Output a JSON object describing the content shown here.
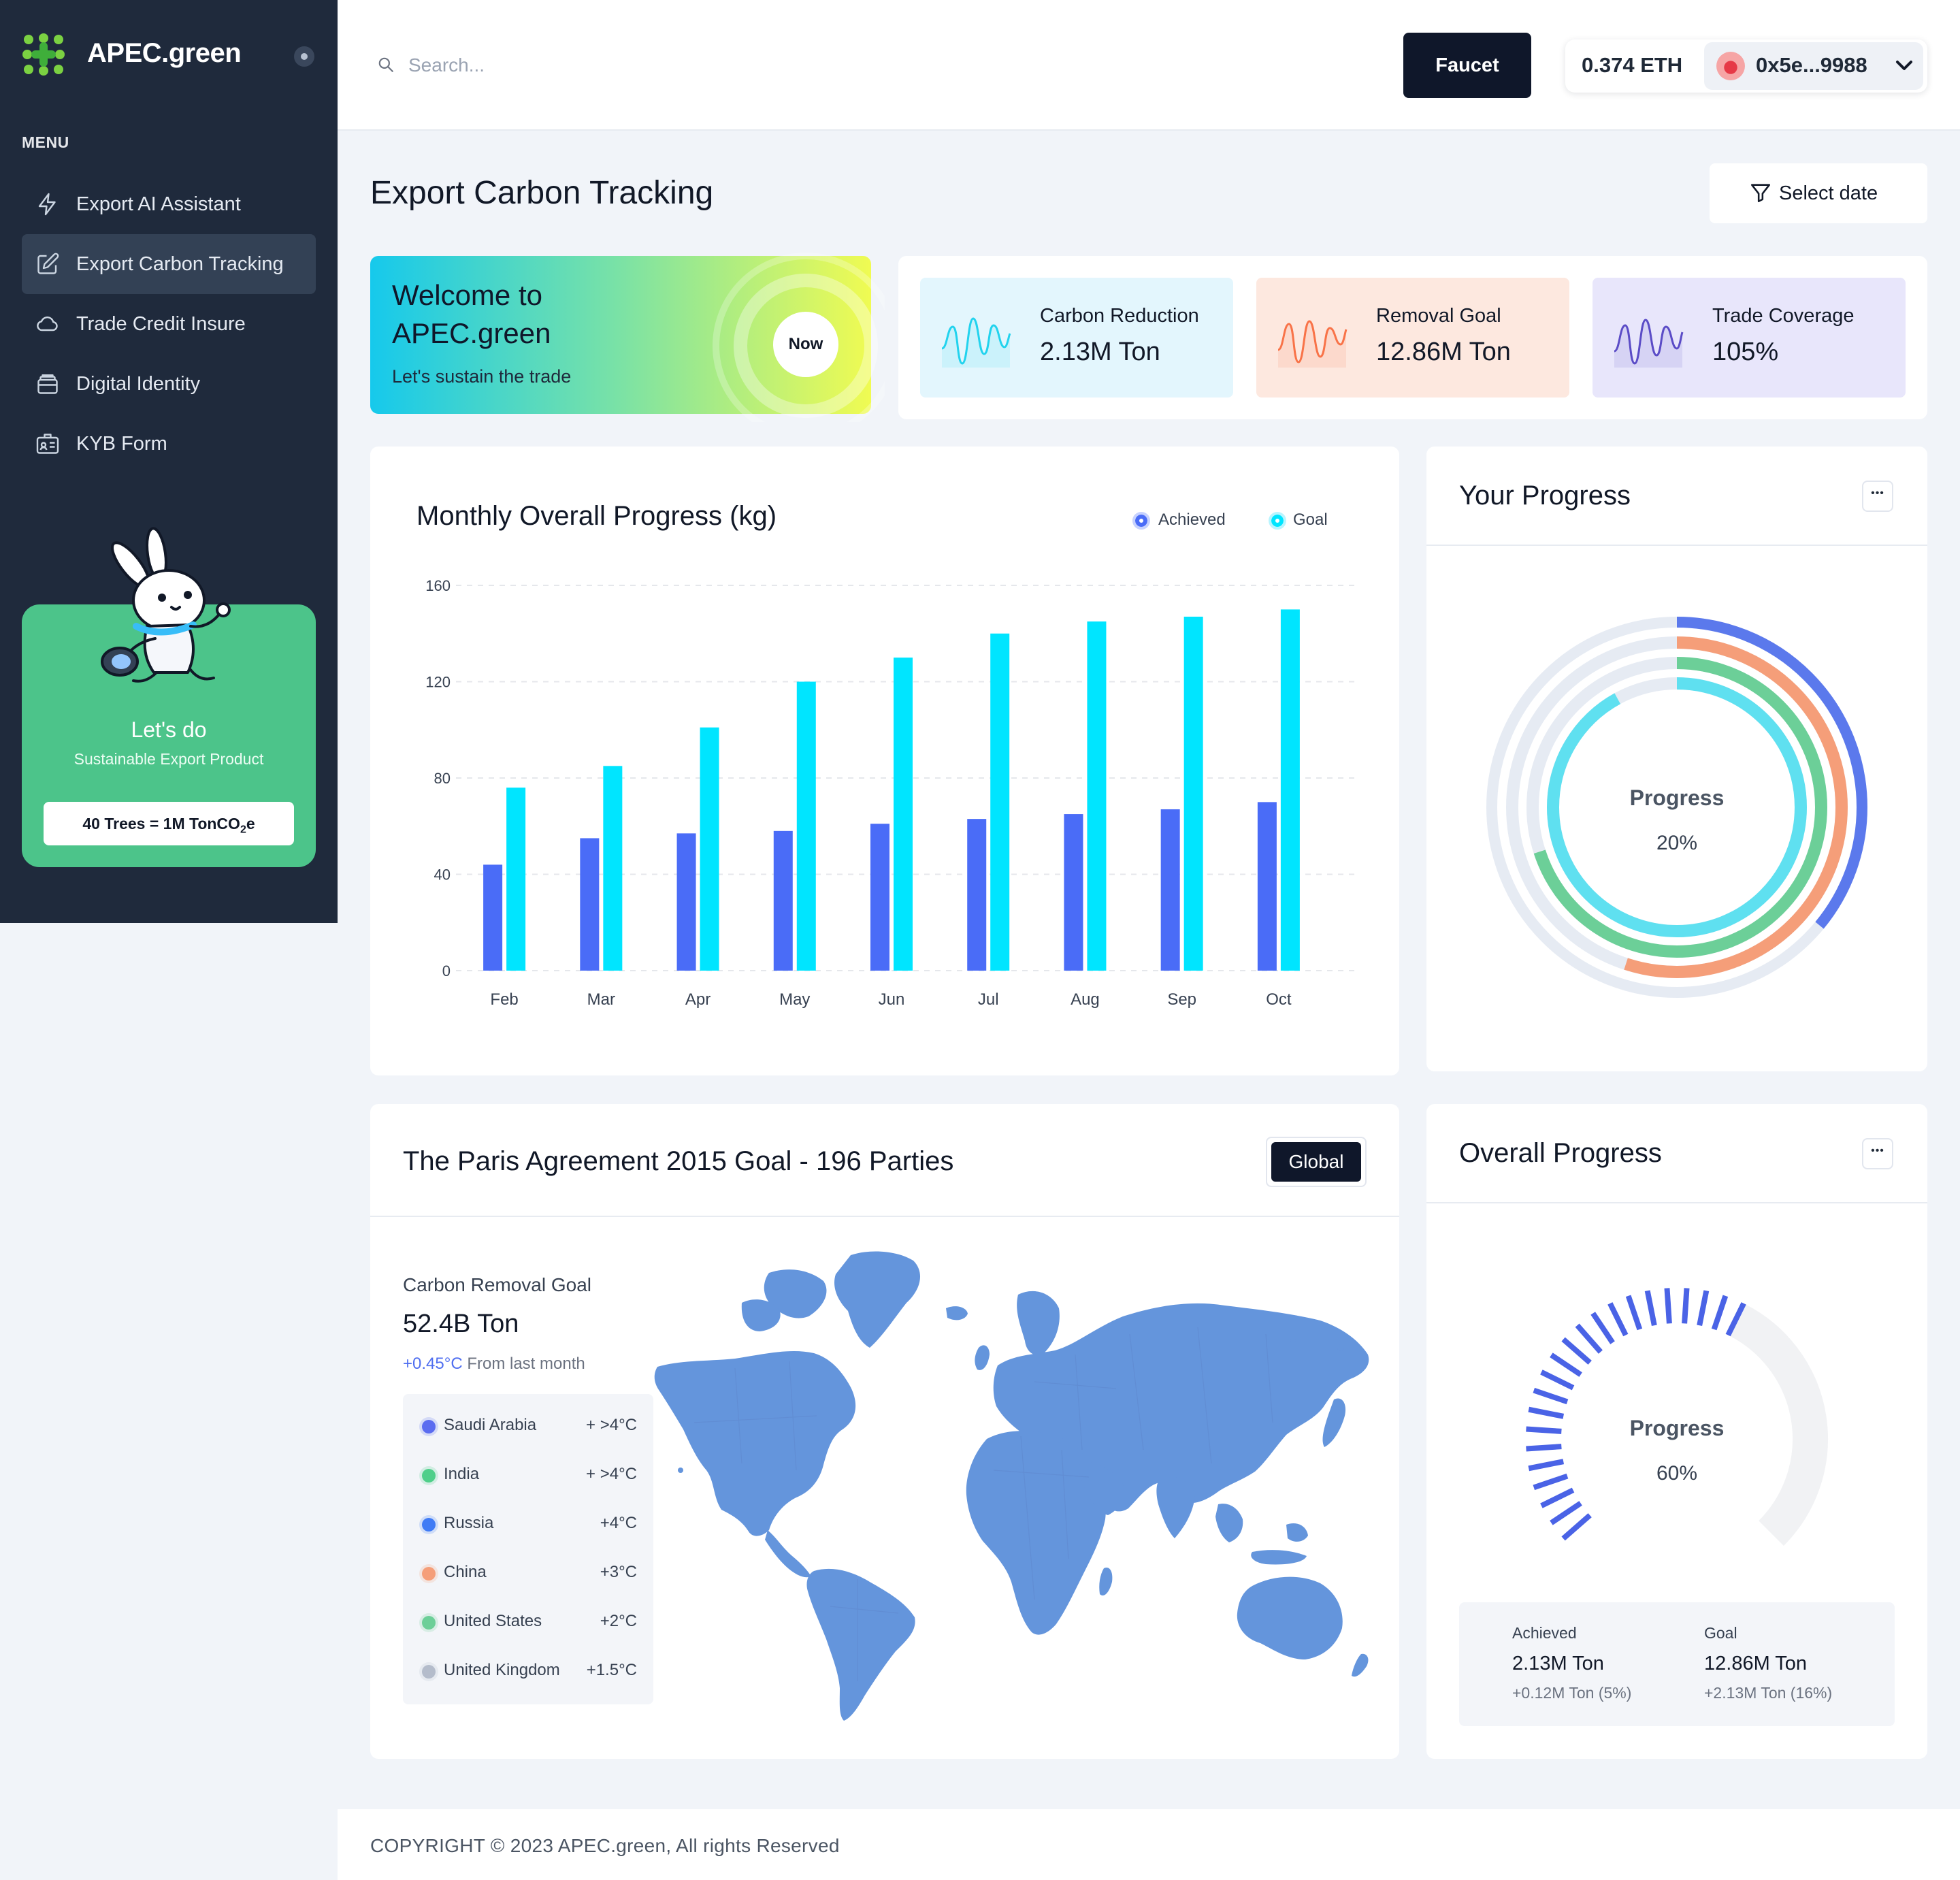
{
  "app": {
    "brand": "APEC.green"
  },
  "sidebar": {
    "menu_label": "MENU",
    "items": [
      {
        "label": "Export AI Assistant",
        "icon": "lightning-icon"
      },
      {
        "label": "Export Carbon Tracking",
        "icon": "edit-icon",
        "active": true
      },
      {
        "label": "Trade Credit Insure",
        "icon": "cloud-icon"
      },
      {
        "label": "Digital Identity",
        "icon": "card-stack-icon"
      },
      {
        "label": "KYB Form",
        "icon": "id-card-icon"
      }
    ],
    "promo": {
      "title": "Let's do",
      "subtitle": "Sustainable Export Product",
      "button_prefix": "40 Trees = 1M TonCO",
      "button_sub": "2",
      "button_suffix": "e"
    }
  },
  "header": {
    "search_placeholder": "Search...",
    "faucet_label": "Faucet",
    "eth_balance": "0.374 ETH",
    "address": "0x5e...9988"
  },
  "page": {
    "title": "Export Carbon Tracking",
    "select_date": "Select date"
  },
  "welcome": {
    "title": "Welcome to APEC.green",
    "subtitle": "Let's sustain the trade",
    "now_label": "Now"
  },
  "stats": [
    {
      "label": "Carbon Reduction",
      "value": "2.13M Ton",
      "bg": "#e3f6fd",
      "stroke": "#22d3ee"
    },
    {
      "label": "Removal Goal",
      "value": "12.86M Ton",
      "bg": "#fde8df",
      "stroke": "#f97348"
    },
    {
      "label": "Trade Coverage",
      "value": "105%",
      "bg": "#e8e6fb",
      "stroke": "#5b4cc7"
    }
  ],
  "monthly": {
    "title": "Monthly Overall Progress (kg)",
    "legend": [
      {
        "name": "Achieved",
        "color": "#4a6cf7"
      },
      {
        "name": "Goal",
        "color": "#00e5ff"
      }
    ]
  },
  "chart_data": {
    "type": "bar",
    "categories": [
      "Feb",
      "Mar",
      "Apr",
      "May",
      "Jun",
      "Jul",
      "Aug",
      "Sep",
      "Oct"
    ],
    "series": [
      {
        "name": "Achieved",
        "values": [
          44,
          55,
          57,
          58,
          61,
          63,
          65,
          67,
          70
        ]
      },
      {
        "name": "Goal",
        "values": [
          76,
          85,
          101,
          120,
          130,
          140,
          145,
          147,
          150
        ]
      }
    ],
    "yticks": [
      0,
      40,
      80,
      120,
      160
    ],
    "ylim": [
      0,
      160
    ],
    "grid": true,
    "legend_position": "top-right"
  },
  "your_progress": {
    "title": "Your Progress",
    "center_label": "Progress",
    "center_value": "20%",
    "rings": [
      {
        "color": "#5b79ec",
        "fraction": 0.36
      },
      {
        "color": "#f59e79",
        "fraction": 0.55
      },
      {
        "color": "#6ccf98",
        "fraction": 0.7
      },
      {
        "color": "#5fe0f0",
        "fraction": 0.92
      }
    ]
  },
  "paris": {
    "title": "The Paris Agreement 2015 Goal - 196 Parties",
    "global_label": "Global",
    "goal_label": "Carbon Removal Goal",
    "goal_value": "52.4B Ton",
    "delta": "+0.45°C",
    "delta_suffix": "From last month",
    "countries": [
      {
        "name": "Saudi Arabia",
        "temp": "+ >4°C",
        "color": "#5b6cf0"
      },
      {
        "name": "India",
        "temp": "+ >4°C",
        "color": "#4fcf8a"
      },
      {
        "name": "Russia",
        "temp": "+4°C",
        "color": "#3f7bf5"
      },
      {
        "name": "China",
        "temp": "+3°C",
        "color": "#f59e79"
      },
      {
        "name": "United States",
        "temp": "+2°C",
        "color": "#6ccf98"
      },
      {
        "name": "United Kingdom",
        "temp": "+1.5°C",
        "color": "#b4bccb"
      }
    ]
  },
  "overall": {
    "title": "Overall Progress",
    "center_label": "Progress",
    "center_value": "60%",
    "progress_fraction": 0.6,
    "achieved_label": "Achieved",
    "achieved_value": "2.13M Ton",
    "achieved_sub": "+0.12M Ton (5%)",
    "goal_label": "Goal",
    "goal_value": "12.86M Ton",
    "goal_sub": "+2.13M Ton (16%)"
  },
  "footer": {
    "copyright": "COPYRIGHT © 2023 APEC.green, All rights Reserved"
  }
}
